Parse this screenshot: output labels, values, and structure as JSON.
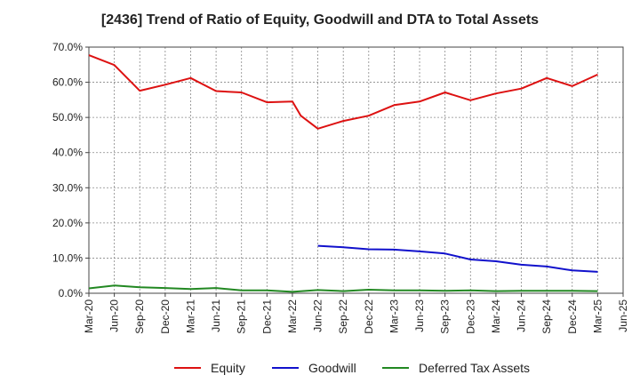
{
  "chart_data": {
    "type": "line",
    "title": "[2436]  Trend of Ratio of Equity, Goodwill and DTA to Total Assets",
    "xlabel": "",
    "ylabel": "",
    "ylim": [
      0,
      70
    ],
    "yticks": [
      0,
      10,
      20,
      30,
      40,
      50,
      60,
      70
    ],
    "ytick_labels": [
      "0.0%",
      "10.0%",
      "20.0%",
      "30.0%",
      "40.0%",
      "50.0%",
      "60.0%",
      "70.0%"
    ],
    "x_tick_labels": [
      "Mar-20",
      "Jun-20",
      "Sep-20",
      "Dec-20",
      "Mar-21",
      "Jun-21",
      "Sep-21",
      "Dec-21",
      "Mar-22",
      "Jun-22",
      "Sep-22",
      "Dec-22",
      "Mar-23",
      "Jun-23",
      "Sep-23",
      "Dec-23",
      "Mar-24",
      "Jun-24",
      "Sep-24",
      "Dec-24",
      "Mar-25",
      "Jun-25"
    ],
    "x_range_quarters": [
      0,
      21
    ],
    "grid": true,
    "legend_position": "bottom",
    "series": [
      {
        "name": "Equity",
        "color": "#dd1111",
        "points": [
          [
            0,
            67.7
          ],
          [
            1,
            64.9
          ],
          [
            2,
            57.6
          ],
          [
            3,
            59.3
          ],
          [
            4,
            61.2
          ],
          [
            5,
            57.5
          ],
          [
            6,
            57.1
          ],
          [
            7,
            54.3
          ],
          [
            8,
            54.5
          ],
          [
            8.33,
            50.5
          ],
          [
            9,
            46.8
          ],
          [
            10,
            49.0
          ],
          [
            11,
            50.5
          ],
          [
            12,
            53.5
          ],
          [
            13,
            54.5
          ],
          [
            14,
            57.1
          ],
          [
            15,
            54.9
          ],
          [
            16,
            56.8
          ],
          [
            17,
            58.2
          ],
          [
            18,
            61.2
          ],
          [
            19,
            58.9
          ],
          [
            20,
            62.2
          ]
        ]
      },
      {
        "name": "Goodwill",
        "color": "#1111cc",
        "points": [
          [
            9,
            13.5
          ],
          [
            10,
            13.1
          ],
          [
            11,
            12.5
          ],
          [
            12,
            12.4
          ],
          [
            13,
            11.9
          ],
          [
            14,
            11.3
          ],
          [
            15,
            9.6
          ],
          [
            16,
            9.1
          ],
          [
            17,
            8.1
          ],
          [
            18,
            7.6
          ],
          [
            19,
            6.5
          ],
          [
            20,
            6.1
          ]
        ]
      },
      {
        "name": "Deferred Tax Assets",
        "color": "#228822",
        "points": [
          [
            0,
            1.4
          ],
          [
            1,
            2.2
          ],
          [
            2,
            1.7
          ],
          [
            3,
            1.5
          ],
          [
            4,
            1.2
          ],
          [
            5,
            1.5
          ],
          [
            6,
            0.8
          ],
          [
            7,
            0.8
          ],
          [
            8,
            0.4
          ],
          [
            9,
            0.9
          ],
          [
            10,
            0.6
          ],
          [
            11,
            1.0
          ],
          [
            12,
            0.8
          ],
          [
            13,
            0.8
          ],
          [
            14,
            0.7
          ],
          [
            15,
            0.8
          ],
          [
            16,
            0.6
          ],
          [
            17,
            0.7
          ],
          [
            18,
            0.7
          ],
          [
            19,
            0.7
          ],
          [
            20,
            0.6
          ]
        ]
      }
    ]
  }
}
